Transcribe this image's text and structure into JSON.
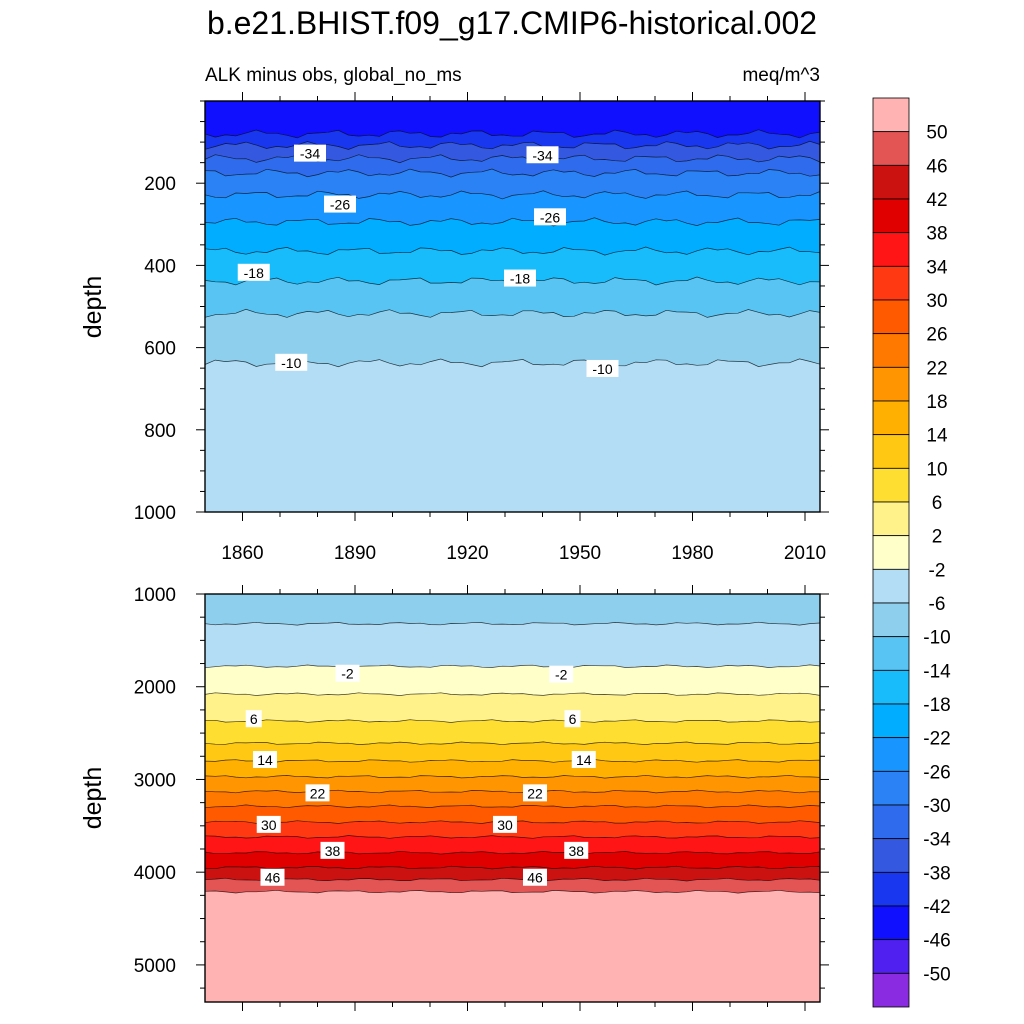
{
  "figure": {
    "title": "b.e21.BHIST.f09_g17.CMIP6-historical.002",
    "left_string": "ALK minus obs, global_no_ms",
    "right_string": "meq/m^3"
  },
  "chart_data": [
    {
      "type": "contour",
      "panel": "upper",
      "title": "b.e21.BHIST.f09_g17.CMIP6-historical.002",
      "variable": "ALK minus obs, global_no_ms",
      "units": "meq/m^3",
      "xlabel": "",
      "ylabel": "depth",
      "xlim": [
        1850,
        2014
      ],
      "ylim": [
        0,
        1000
      ],
      "y_inverted": true,
      "x_ticks": [
        1860,
        1890,
        1920,
        1950,
        1980,
        2010
      ],
      "x_tick_labels": [
        "1860",
        "1890",
        "1920",
        "1950",
        "1980",
        "2010"
      ],
      "y_ticks": [
        200,
        400,
        600,
        800,
        1000
      ],
      "y_tick_labels": [
        "200",
        "400",
        "600",
        "800",
        "1000"
      ],
      "contour_interval": 4,
      "contour_boundaries_depth": [
        {
          "level": -42,
          "depth": 80
        },
        {
          "level": -38,
          "depth": 108
        },
        {
          "level": -34,
          "depth": 140
        },
        {
          "level": -30,
          "depth": 175
        },
        {
          "level": -26,
          "depth": 228
        },
        {
          "level": -22,
          "depth": 294
        },
        {
          "level": -18,
          "depth": 365
        },
        {
          "level": -14,
          "depth": 438
        },
        {
          "level": -10,
          "depth": 517
        },
        {
          "level": -6,
          "depth": 637
        }
      ],
      "contour_labels": [
        {
          "text": "-34",
          "x": 1878,
          "depth": 128
        },
        {
          "text": "-34",
          "x": 1940,
          "depth": 132
        },
        {
          "text": "-26",
          "x": 1886,
          "depth": 252
        },
        {
          "text": "-26",
          "x": 1942,
          "depth": 283
        },
        {
          "text": "-18",
          "x": 1863,
          "depth": 418
        },
        {
          "text": "-18",
          "x": 1934,
          "depth": 432
        },
        {
          "text": "-10",
          "x": 1873,
          "depth": 637
        },
        {
          "text": "-10",
          "x": 1956,
          "depth": 652
        }
      ]
    },
    {
      "type": "contour",
      "panel": "lower",
      "xlabel": "",
      "ylabel": "depth",
      "xlim": [
        1850,
        2014
      ],
      "ylim": [
        1000,
        5400
      ],
      "y_inverted": true,
      "y_ticks": [
        1000,
        2000,
        3000,
        4000,
        5000
      ],
      "y_tick_labels": [
        "1000",
        "2000",
        "3000",
        "4000",
        "5000"
      ],
      "contour_interval": 4,
      "contour_boundaries_depth": [
        {
          "level": -6,
          "depth": 1320
        },
        {
          "level": -2,
          "depth": 1780
        },
        {
          "level": 2,
          "depth": 2080
        },
        {
          "level": 6,
          "depth": 2370
        },
        {
          "level": 10,
          "depth": 2610
        },
        {
          "level": 14,
          "depth": 2800
        },
        {
          "level": 18,
          "depth": 2970
        },
        {
          "level": 22,
          "depth": 3130
        },
        {
          "level": 26,
          "depth": 3290
        },
        {
          "level": 30,
          "depth": 3460
        },
        {
          "level": 34,
          "depth": 3620
        },
        {
          "level": 38,
          "depth": 3790
        },
        {
          "level": 42,
          "depth": 3950
        },
        {
          "level": 46,
          "depth": 4080
        },
        {
          "level": 50,
          "depth": 4210
        }
      ],
      "contour_labels": [
        {
          "text": "-2",
          "x": 1888,
          "depth": 1860
        },
        {
          "text": "-2",
          "x": 1945,
          "depth": 1870
        },
        {
          "text": "6",
          "x": 1863,
          "depth": 2350
        },
        {
          "text": "6",
          "x": 1948,
          "depth": 2350
        },
        {
          "text": "14",
          "x": 1866,
          "depth": 2790
        },
        {
          "text": "14",
          "x": 1951,
          "depth": 2790
        },
        {
          "text": "22",
          "x": 1880,
          "depth": 3150
        },
        {
          "text": "22",
          "x": 1938,
          "depth": 3150
        },
        {
          "text": "30",
          "x": 1867,
          "depth": 3490
        },
        {
          "text": "30",
          "x": 1930,
          "depth": 3490
        },
        {
          "text": "38",
          "x": 1884,
          "depth": 3770
        },
        {
          "text": "38",
          "x": 1949,
          "depth": 3770
        },
        {
          "text": "46",
          "x": 1868,
          "depth": 4060
        },
        {
          "text": "46",
          "x": 1938,
          "depth": 4060
        }
      ]
    }
  ],
  "colorbar": {
    "labels": [
      "50",
      "46",
      "42",
      "38",
      "34",
      "30",
      "26",
      "22",
      "18",
      "14",
      "10",
      "6",
      "2",
      "-2",
      "-6",
      "-10",
      "-14",
      "-18",
      "-22",
      "-26",
      "-30",
      "-34",
      "-38",
      "-42",
      "-46",
      "-50"
    ],
    "colors_top_to_bottom": [
      "#ffb3b3",
      "#e35555",
      "#cc1111",
      "#e00000",
      "#ff1515",
      "#ff3a12",
      "#ff5a00",
      "#ff7800",
      "#ff9500",
      "#ffb000",
      "#ffc812",
      "#ffde32",
      "#fff28a",
      "#ffffc9",
      "#b3dcf5",
      "#8ecfee",
      "#57c4f3",
      "#18bcfb",
      "#00adff",
      "#1995ff",
      "#2b82f5",
      "#2e6bed",
      "#3558e0",
      "#1a37f0",
      "#1010ff",
      "#5020f0",
      "#8a2be2"
    ]
  }
}
